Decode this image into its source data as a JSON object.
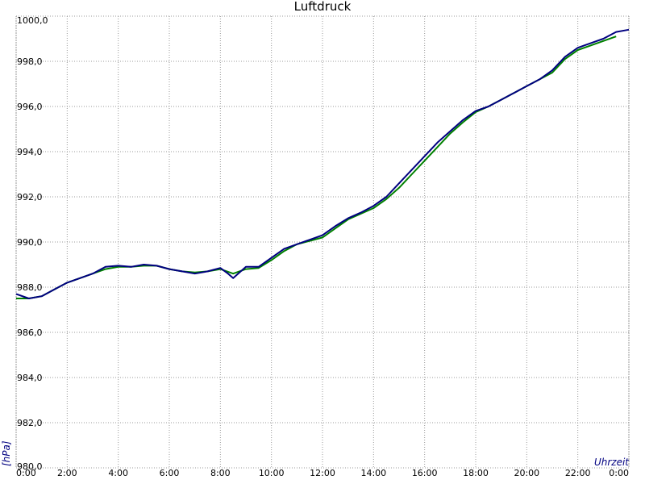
{
  "chart_data": {
    "type": "line",
    "title": "Luftdruck",
    "xlabel": "Uhrzeit",
    "ylabel": "[hPa]",
    "xlim": [
      0,
      24
    ],
    "ylim": [
      980,
      1000
    ],
    "x_ticks": [
      {
        "value": 0,
        "label": "0:00"
      },
      {
        "value": 2,
        "label": "2:00"
      },
      {
        "value": 4,
        "label": "4:00"
      },
      {
        "value": 6,
        "label": "6:00"
      },
      {
        "value": 8,
        "label": "8:00"
      },
      {
        "value": 10,
        "label": "10:00"
      },
      {
        "value": 12,
        "label": "12:00"
      },
      {
        "value": 14,
        "label": "14:00"
      },
      {
        "value": 16,
        "label": "16:00"
      },
      {
        "value": 18,
        "label": "18:00"
      },
      {
        "value": 20,
        "label": "20:00"
      },
      {
        "value": 22,
        "label": "22:00"
      },
      {
        "value": 24,
        "label": "0:00"
      }
    ],
    "y_ticks": [
      {
        "value": 980,
        "label": "980,0"
      },
      {
        "value": 982,
        "label": "982,0"
      },
      {
        "value": 984,
        "label": "984,0"
      },
      {
        "value": 986,
        "label": "986,0"
      },
      {
        "value": 988,
        "label": "988,0"
      },
      {
        "value": 990,
        "label": "990,0"
      },
      {
        "value": 992,
        "label": "992,0"
      },
      {
        "value": 994,
        "label": "994,0"
      },
      {
        "value": 996,
        "label": "996,0"
      },
      {
        "value": 998,
        "label": "998,0"
      },
      {
        "value": 1000,
        "label": "1000,0"
      }
    ],
    "grid": true,
    "legend": "none",
    "series": [
      {
        "color": "#000080",
        "x": [
          0,
          0.5,
          1.0,
          1.5,
          2.0,
          2.5,
          3.0,
          3.5,
          4.0,
          4.5,
          5.0,
          5.5,
          6.0,
          6.5,
          7.0,
          7.5,
          8.0,
          8.3,
          8.5,
          9.0,
          9.5,
          10.0,
          10.5,
          11.0,
          11.5,
          12.0,
          12.5,
          13.0,
          13.5,
          14.0,
          14.5,
          15.0,
          15.5,
          16.0,
          16.5,
          17.0,
          17.5,
          18.0,
          18.5,
          19.0,
          19.5,
          20.0,
          20.5,
          21.0,
          21.5,
          22.0,
          22.5,
          23.0,
          23.5,
          24.0
        ],
        "values": [
          987.7,
          987.5,
          987.6,
          987.9,
          988.2,
          988.4,
          988.6,
          988.9,
          988.95,
          988.9,
          989.0,
          988.95,
          988.8,
          988.7,
          988.6,
          988.7,
          988.85,
          988.6,
          988.4,
          988.9,
          988.9,
          989.3,
          989.7,
          989.9,
          990.1,
          990.3,
          990.7,
          991.05,
          991.3,
          991.6,
          992.0,
          992.6,
          993.2,
          993.8,
          994.4,
          994.9,
          995.4,
          995.8,
          996.0,
          996.3,
          996.6,
          996.9,
          997.2,
          997.6,
          998.2,
          998.6,
          998.8,
          999.0,
          999.3,
          999.4
        ]
      },
      {
        "color": "#008000",
        "x": [
          0,
          0.5,
          1.0,
          1.5,
          2.0,
          2.5,
          3.0,
          3.5,
          4.0,
          4.5,
          5.0,
          5.5,
          6.0,
          6.5,
          7.0,
          7.5,
          8.0,
          8.5,
          9.0,
          9.5,
          10.0,
          10.5,
          11.0,
          11.5,
          12.0,
          12.5,
          13.0,
          13.5,
          14.0,
          14.5,
          15.0,
          15.5,
          16.0,
          16.5,
          17.0,
          17.5,
          18.0,
          18.5,
          19.0,
          19.5,
          20.0,
          20.5,
          21.0,
          21.5,
          22.0,
          22.5,
          23.0,
          23.5
        ],
        "values": [
          987.5,
          987.5,
          987.6,
          987.9,
          988.2,
          988.4,
          988.6,
          988.8,
          988.9,
          988.9,
          988.95,
          988.95,
          988.8,
          988.7,
          988.65,
          988.7,
          988.8,
          988.6,
          988.8,
          988.85,
          989.2,
          989.6,
          989.9,
          990.05,
          990.2,
          990.6,
          991.0,
          991.25,
          991.5,
          991.9,
          992.4,
          993.0,
          993.6,
          994.2,
          994.8,
          995.3,
          995.75,
          996.0,
          996.3,
          996.6,
          996.9,
          997.2,
          997.5,
          998.1,
          998.5,
          998.7,
          998.9,
          999.1
        ]
      }
    ]
  }
}
